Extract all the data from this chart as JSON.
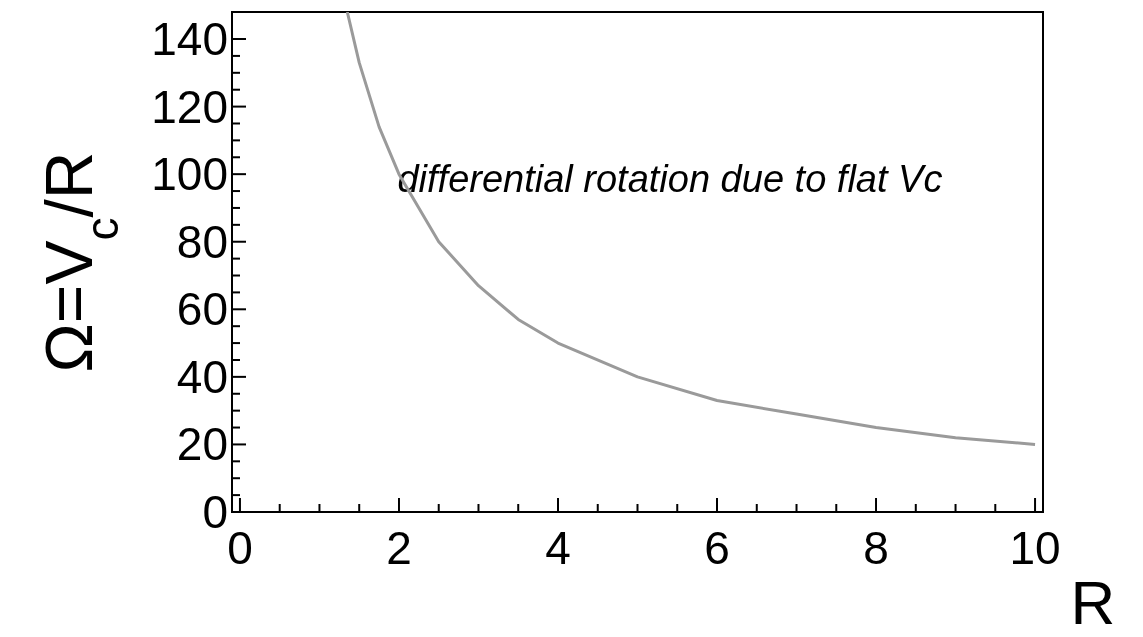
{
  "chart_data": {
    "type": "line",
    "xlabel": "R",
    "ylabel": "Ω=V$_{c}$/R",
    "annotations": [
      "differential rotation due to flat Vc"
    ],
    "x": [
      1.35,
      1.5,
      1.75,
      2,
      2.5,
      3,
      3.5,
      4,
      5,
      6,
      7,
      8,
      9,
      10
    ],
    "series": [
      {
        "color": "#9a9a9a",
        "values": [
          148,
          133,
          114,
          100,
          80,
          67,
          57,
          50,
          40,
          33,
          29,
          25,
          22,
          20
        ]
      }
    ],
    "xlim": [
      -0.1,
      10.1
    ],
    "ylim": [
      0,
      148
    ],
    "xticks": [
      0,
      {
        "value": 0.5,
        "label": null
      },
      {
        "value": 1,
        "label": null
      },
      {
        "value": 1.5,
        "label": null
      },
      2,
      {
        "value": 2.5,
        "label": null
      },
      {
        "value": 3,
        "label": null
      },
      {
        "value": 3.5,
        "label": null
      },
      4,
      {
        "value": 4.5,
        "label": null
      },
      {
        "value": 5,
        "label": null
      },
      {
        "value": 5.5,
        "label": null
      },
      6,
      {
        "value": 6.5,
        "label": null
      },
      {
        "value": 7,
        "label": null
      },
      {
        "value": 7.5,
        "label": null
      },
      8,
      {
        "value": 8.5,
        "label": null
      },
      {
        "value": 9,
        "label": null
      },
      {
        "value": 9.5,
        "label": null
      },
      10
    ],
    "yticks": [
      0,
      {
        "value": 5,
        "label": null
      },
      {
        "value": 10,
        "label": null
      },
      {
        "value": 15,
        "label": null
      },
      20,
      {
        "value": 25,
        "label": null
      },
      {
        "value": 30,
        "label": null
      },
      {
        "value": 35,
        "label": null
      },
      40,
      {
        "value": 45,
        "label": null
      },
      {
        "value": 50,
        "label": null
      },
      {
        "value": 55,
        "label": null
      },
      60,
      {
        "value": 65,
        "label": null
      },
      {
        "value": 70,
        "label": null
      },
      {
        "value": 75,
        "label": null
      },
      80,
      {
        "value": 85,
        "label": null
      },
      {
        "value": 90,
        "label": null
      },
      {
        "value": 95,
        "label": null
      },
      100,
      {
        "value": 105,
        "label": null
      },
      {
        "value": 110,
        "label": null
      },
      {
        "value": 115,
        "label": null
      },
      120,
      {
        "value": 125,
        "label": null
      },
      {
        "value": 130,
        "label": null
      },
      {
        "value": 135,
        "label": null
      },
      140
    ],
    "marker": "none",
    "line_style": "solid",
    "grid": false,
    "legend": false
  }
}
